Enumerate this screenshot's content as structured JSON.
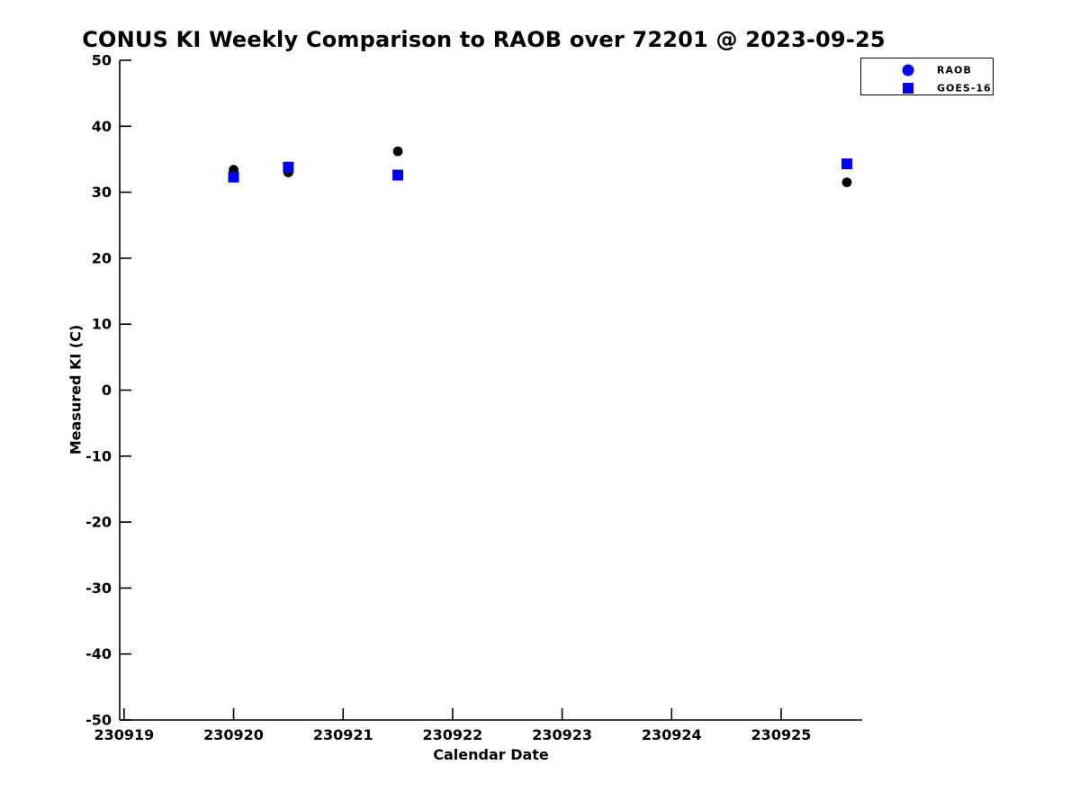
{
  "figure": {
    "title": "CONUS KI Weekly Comparison to RAOB over 72201 @ 2023-09-25"
  },
  "chart_data": {
    "type": "scatter",
    "title": "CONUS KI Weekly Comparison to RAOB over 72201 @ 2023-09-25",
    "xlabel": "Calendar Date",
    "ylabel": "Measured KI (C)",
    "xlim": [
      230918.96,
      230925.74
    ],
    "ylim": [
      -50,
      50
    ],
    "x_ticks": [
      230919,
      230920,
      230921,
      230922,
      230923,
      230924,
      230925
    ],
    "y_ticks": [
      -50,
      -40,
      -30,
      -20,
      -10,
      0,
      10,
      20,
      30,
      40,
      50
    ],
    "grid": false,
    "box": false,
    "background_color": "#ffffff",
    "axis_color": "#000000",
    "legend": {
      "position": "top-right",
      "entries": [
        {
          "label": "RAOB",
          "marker": "circle",
          "marker_color": "#0000ee"
        },
        {
          "label": "GOES-16",
          "marker": "square",
          "marker_color": "#0000ee"
        }
      ]
    },
    "series": [
      {
        "name": "RAOB",
        "marker": "circle",
        "color": "#000000",
        "points": [
          {
            "x": 230920.0,
            "y": 33.4
          },
          {
            "x": 230920.5,
            "y": 33.0
          },
          {
            "x": 230921.5,
            "y": 36.2
          },
          {
            "x": 230925.6,
            "y": 31.5
          }
        ]
      },
      {
        "name": "GOES-16",
        "marker": "square",
        "color": "#0000ee",
        "points": [
          {
            "x": 230920.0,
            "y": 32.3
          },
          {
            "x": 230920.5,
            "y": 33.8
          },
          {
            "x": 230921.5,
            "y": 32.6
          },
          {
            "x": 230925.6,
            "y": 34.3
          }
        ]
      }
    ]
  }
}
